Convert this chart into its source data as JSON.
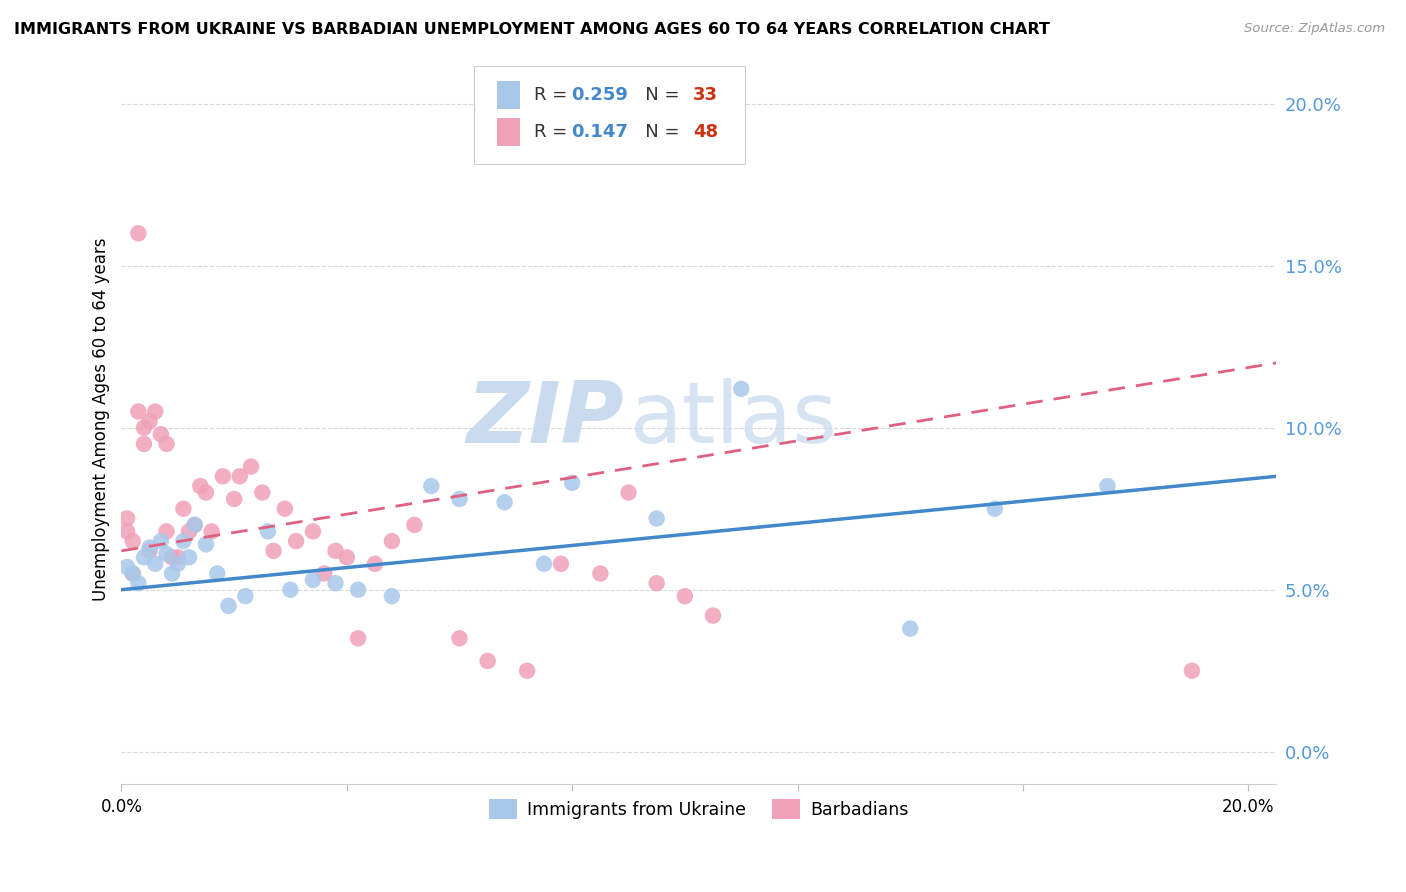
{
  "title": "IMMIGRANTS FROM UKRAINE VS BARBADIAN UNEMPLOYMENT AMONG AGES 60 TO 64 YEARS CORRELATION CHART",
  "source": "Source: ZipAtlas.com",
  "ylabel": "Unemployment Among Ages 60 to 64 years",
  "xlim": [
    0.0,
    0.205
  ],
  "ylim": [
    -0.01,
    0.215
  ],
  "yticks": [
    0.0,
    0.05,
    0.1,
    0.15,
    0.2
  ],
  "ytick_labels": [
    "0.0%",
    "5.0%",
    "10.0%",
    "15.0%",
    "20.0%"
  ],
  "xticks": [
    0.0,
    0.04,
    0.08,
    0.12,
    0.16,
    0.2
  ],
  "blue_color": "#a8c8ea",
  "pink_color": "#f0a0b8",
  "blue_line_color": "#4488cc",
  "pink_line_color": "#e06080",
  "right_axis_color": "#5599dd",
  "blue_x": [
    0.001,
    0.002,
    0.003,
    0.004,
    0.005,
    0.006,
    0.007,
    0.008,
    0.009,
    0.01,
    0.011,
    0.012,
    0.013,
    0.015,
    0.017,
    0.019,
    0.022,
    0.026,
    0.03,
    0.034,
    0.038,
    0.042,
    0.048,
    0.055,
    0.06,
    0.068,
    0.075,
    0.08,
    0.095,
    0.11,
    0.14,
    0.155,
    0.175
  ],
  "blue_y": [
    0.057,
    0.055,
    0.052,
    0.06,
    0.063,
    0.058,
    0.065,
    0.061,
    0.055,
    0.058,
    0.065,
    0.06,
    0.07,
    0.064,
    0.055,
    0.045,
    0.048,
    0.068,
    0.05,
    0.053,
    0.052,
    0.05,
    0.048,
    0.082,
    0.078,
    0.077,
    0.058,
    0.083,
    0.072,
    0.112,
    0.038,
    0.075,
    0.082
  ],
  "pink_x": [
    0.001,
    0.001,
    0.002,
    0.002,
    0.003,
    0.003,
    0.004,
    0.004,
    0.005,
    0.005,
    0.006,
    0.007,
    0.008,
    0.008,
    0.009,
    0.01,
    0.011,
    0.012,
    0.013,
    0.014,
    0.015,
    0.016,
    0.018,
    0.02,
    0.021,
    0.023,
    0.025,
    0.027,
    0.029,
    0.031,
    0.034,
    0.036,
    0.038,
    0.04,
    0.042,
    0.045,
    0.048,
    0.052,
    0.06,
    0.065,
    0.072,
    0.078,
    0.085,
    0.09,
    0.095,
    0.1,
    0.105,
    0.19
  ],
  "pink_y": [
    0.068,
    0.072,
    0.065,
    0.055,
    0.16,
    0.105,
    0.095,
    0.1,
    0.102,
    0.062,
    0.105,
    0.098,
    0.095,
    0.068,
    0.06,
    0.06,
    0.075,
    0.068,
    0.07,
    0.082,
    0.08,
    0.068,
    0.085,
    0.078,
    0.085,
    0.088,
    0.08,
    0.062,
    0.075,
    0.065,
    0.068,
    0.055,
    0.062,
    0.06,
    0.035,
    0.058,
    0.065,
    0.07,
    0.035,
    0.028,
    0.025,
    0.058,
    0.055,
    0.08,
    0.052,
    0.048,
    0.042,
    0.025
  ],
  "blue_line_start_y": 0.05,
  "blue_line_end_y": 0.085,
  "pink_line_start_y": 0.062,
  "pink_line_end_y": 0.12,
  "watermark_zip_color": "#c5d8ee",
  "watermark_atlas_color": "#c5d8ee"
}
